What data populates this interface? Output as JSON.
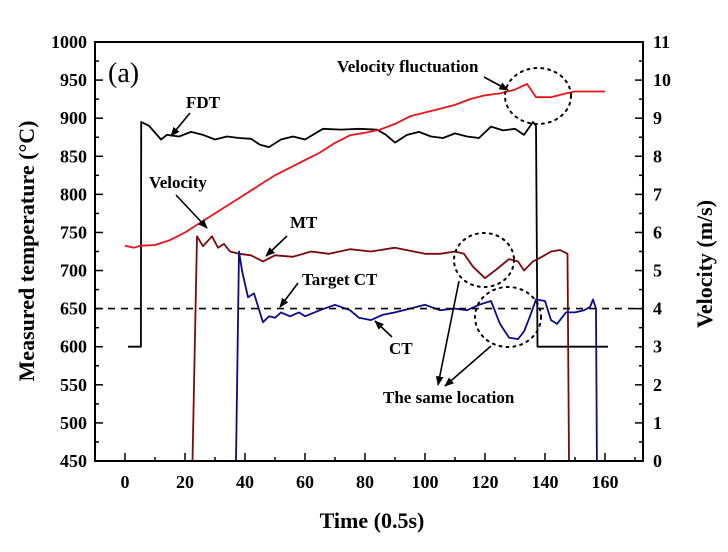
{
  "chart_data": {
    "type": "line",
    "panel_label": "(a)",
    "xlabel": "Time (0.5s)",
    "ylabel": "Measured temperature (°C)",
    "y2label": "Velocity (m/s)",
    "xlim": [
      -10,
      175
    ],
    "ylim": [
      450,
      1000
    ],
    "y2lim": [
      0,
      11
    ],
    "xticks": [
      0,
      20,
      40,
      60,
      80,
      100,
      120,
      140,
      160
    ],
    "yticks": [
      450,
      500,
      550,
      600,
      650,
      700,
      750,
      800,
      850,
      900,
      950,
      1000
    ],
    "y2ticks": [
      0,
      1,
      2,
      3,
      4,
      5,
      6,
      7,
      8,
      9,
      10,
      11
    ],
    "grid": false,
    "colors": {
      "FDT": "#000000",
      "Velocity": "#e8141a",
      "MT": "#7a0a0a",
      "CT": "#0a0a8a",
      "Target CT": "#000000"
    },
    "series": [
      {
        "name": "FDT",
        "axis": "left",
        "x": [
          1,
          5.3,
          5.4,
          8,
          12,
          14,
          18,
          22,
          26,
          30,
          34,
          38,
          42,
          45,
          48,
          52,
          56,
          60,
          66,
          72,
          78,
          84,
          87,
          90,
          94,
          98,
          102,
          106,
          110,
          114,
          118,
          122,
          126,
          130,
          133,
          136,
          137,
          137.5,
          161
        ],
        "y": [
          600,
          600,
          895,
          890,
          872,
          878,
          876,
          882,
          878,
          872,
          876,
          874,
          873,
          865,
          862,
          872,
          876,
          872,
          886,
          885,
          886,
          885,
          878,
          868,
          878,
          882,
          876,
          874,
          880,
          876,
          874,
          889,
          884,
          886,
          878,
          895,
          890,
          600,
          600
        ]
      },
      {
        "name": "Velocity",
        "axis": "right",
        "x": [
          0,
          3,
          5,
          10,
          15,
          20,
          25,
          30,
          35,
          40,
          45,
          50,
          55,
          60,
          65,
          70,
          75,
          80,
          85,
          90,
          95,
          100,
          105,
          110,
          115,
          120,
          125,
          130,
          134,
          137,
          142,
          147,
          150,
          155,
          160
        ],
        "y": [
          5.65,
          5.6,
          5.65,
          5.67,
          5.8,
          6.0,
          6.25,
          6.5,
          6.75,
          7.0,
          7.25,
          7.5,
          7.7,
          7.9,
          8.1,
          8.35,
          8.55,
          8.62,
          8.7,
          8.85,
          9.05,
          9.15,
          9.25,
          9.35,
          9.5,
          9.6,
          9.65,
          9.75,
          9.9,
          9.55,
          9.55,
          9.65,
          9.7,
          9.7,
          9.7
        ]
      },
      {
        "name": "MT",
        "axis": "left",
        "x": [
          22.5,
          24,
          26,
          29,
          31,
          33,
          35,
          38,
          42,
          46,
          50,
          56,
          62,
          68,
          75,
          82,
          90,
          95,
          100,
          105,
          110,
          113,
          116,
          120,
          124,
          128,
          131,
          133,
          136,
          139,
          142,
          145,
          147.5,
          148
        ],
        "y": [
          450,
          745,
          732,
          745,
          730,
          735,
          725,
          722,
          720,
          712,
          720,
          718,
          725,
          722,
          728,
          725,
          730,
          726,
          722,
          722,
          725,
          722,
          705,
          690,
          702,
          715,
          712,
          700,
          712,
          718,
          725,
          727,
          722,
          450
        ]
      },
      {
        "name": "CT",
        "axis": "left",
        "x": [
          37,
          38,
          39,
          41,
          43,
          46,
          48,
          50,
          52,
          55,
          58,
          60,
          65,
          70,
          75,
          78,
          82,
          86,
          90,
          95,
          100,
          105,
          110,
          114,
          118,
          122,
          125,
          128,
          131,
          133,
          135,
          137,
          140,
          142,
          144,
          147,
          150,
          153,
          155,
          156,
          157,
          157.3
        ],
        "y": [
          450,
          725,
          700,
          665,
          670,
          632,
          640,
          638,
          645,
          640,
          645,
          640,
          648,
          655,
          648,
          638,
          635,
          642,
          645,
          650,
          655,
          648,
          650,
          648,
          655,
          660,
          630,
          612,
          610,
          620,
          640,
          662,
          660,
          635,
          630,
          645,
          645,
          648,
          652,
          662,
          650,
          450
        ]
      },
      {
        "name": "Target CT",
        "axis": "left",
        "style": "dashed",
        "x": [
          -10,
          175
        ],
        "y": [
          650,
          650
        ]
      }
    ],
    "annotations": [
      {
        "text": "FDT",
        "target_series": "FDT",
        "target_x": 12
      },
      {
        "text": "Velocity",
        "target_series": "Velocity",
        "target_x": 27
      },
      {
        "text": "MT",
        "target_series": "MT",
        "target_x": 47
      },
      {
        "text": "Target CT",
        "target_series": "Target CT",
        "target_x": 52
      },
      {
        "text": "CT",
        "target_series": "CT",
        "target_x": 80
      },
      {
        "text": "Velocity fluctuation",
        "target_series": "Velocity",
        "target_x": 128
      },
      {
        "text": "The same location",
        "target_series": "MT/CT",
        "target_x": 120
      }
    ]
  }
}
